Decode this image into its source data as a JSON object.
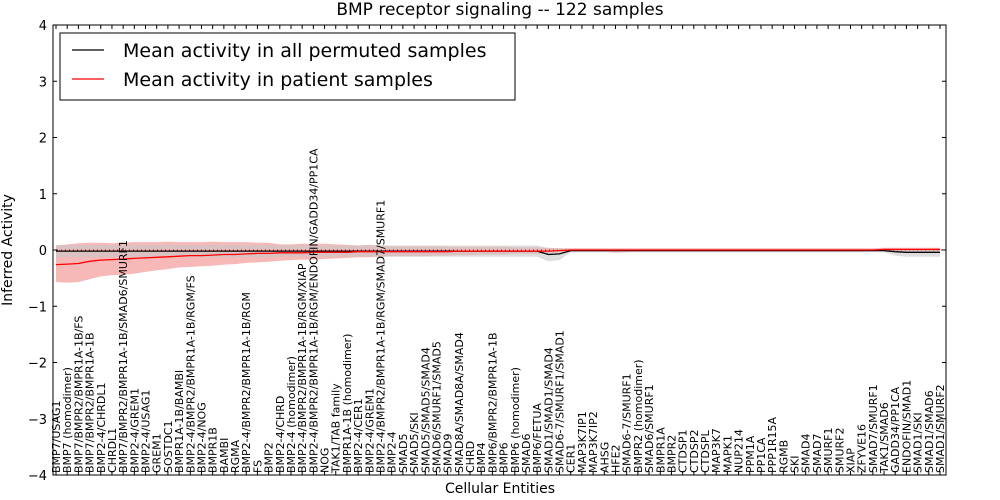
{
  "chart_data": {
    "type": "line",
    "title": "BMP receptor signaling -- 122 samples",
    "xlabel": "Cellular Entities",
    "ylabel": "Inferred Activity",
    "ylim": [
      -4,
      4
    ],
    "yticks": [
      -4,
      -3,
      -2,
      -1,
      0,
      1,
      2,
      3,
      4
    ],
    "legend_position": "top-left",
    "colors": {
      "permuted": "#000000",
      "patient": "#ff0000",
      "patient_band": "#f4a0a0",
      "permuted_band": "#c8c8c8",
      "zero_line": "#ff0000"
    },
    "categories": [
      "BMP7/USAG1",
      "BMP7 (homodimer)",
      "BMP7/BMPR2/BMPR1A-1B/FS",
      "BMP7/BMPR2/BMPR1A-1B",
      "BMP2-4/CHRDL1",
      "CHRDL1",
      "BMP7/BMPR2/BMPR1A-1B/SMAD6/SMURF1",
      "BMP2-4/GREM1",
      "BMP2-4/USAG1",
      "GREM1",
      "SOSTDC1",
      "BMPR1A-1B/BAMBI",
      "BMP2-4/BMPR2/BMPR1A-1B/RGM/FS",
      "BMP2-4/NOG",
      "BMPR1B",
      "BAMBI",
      "RGMA",
      "BMP2-4/BMPR2/BMPR1A-1B/RGM",
      "FS",
      "BMP2",
      "BMP2-4/CHRD",
      "BMP2-4 (homodimer)",
      "BMP2-4/BMPR2/BMPR1A-1B/RGM/XIAP",
      "BMP2-4/BMPR2/BMPR1A-1B/RGM/ENDOFIN/GADD34/PP1CA",
      "NOG",
      "TAK1/TAB family",
      "BMPR1A-1B (homodimer)",
      "BMP2-4/CER1",
      "BMP2-4/GREM1",
      "BMP2-4/BMPR2/BMPR1A-1B/RGM/SMAD7/SMURF1",
      "BMP2-4",
      "SMAD5",
      "SMAD5/SKI",
      "SMAD5/SMAD5/SMAD4",
      "SMAD6/SMURF1/SMAD5",
      "SMAD9",
      "SMAD8A/SMAD8A/SMAD4",
      "CHRD",
      "BMP4",
      "BMP6/BMPR2/BMPR1A-1B",
      "BMP6",
      "BMP6 (homodimer)",
      "SMAD6",
      "BMP6/FETUA",
      "SMAD1/SMAD1/SMAD4",
      "SMAD6-7/SMURF1/SMAD1",
      "CER1",
      "MAP3K7IP1",
      "MAP3K7IP2",
      "AHSG",
      "HFE2",
      "SMAD6-7/SMURF1",
      "BMPR2 (homodimer)",
      "SMAD6/SMURF1",
      "BMPR1A",
      "BMPR2",
      "CTDSP1",
      "CTDSP2",
      "CTDSPL",
      "MAP3K7",
      "MAPK1",
      "NUP214",
      "PPM1A",
      "PP1CA",
      "PPP1R15A",
      "RGMB",
      "SKI",
      "SMAD4",
      "SMAD7",
      "SMURF1",
      "SMURF2",
      "XIAP",
      "ZFYVE16",
      "SMAD7/SMURF1",
      "TAK1/SMAD6",
      "GADD34/PP1CA",
      "ENDOFIN/SMAD1",
      "SMAD1/SKI",
      "SMAD1/SMAD6",
      "SMAD1/SMURF2"
    ],
    "series": [
      {
        "name": "Mean activity in all permuted samples",
        "color": "#000000",
        "values": [
          -0.02,
          -0.02,
          -0.02,
          -0.02,
          -0.02,
          -0.02,
          -0.02,
          -0.02,
          -0.02,
          -0.02,
          -0.02,
          -0.02,
          -0.02,
          -0.02,
          -0.02,
          -0.02,
          -0.02,
          -0.02,
          -0.02,
          -0.02,
          -0.02,
          -0.02,
          -0.02,
          -0.02,
          -0.02,
          -0.02,
          -0.02,
          -0.02,
          -0.02,
          -0.02,
          -0.02,
          -0.02,
          -0.02,
          -0.02,
          -0.02,
          -0.02,
          -0.02,
          -0.02,
          -0.02,
          -0.02,
          -0.02,
          -0.02,
          -0.02,
          -0.02,
          -0.08,
          -0.07,
          -0.01,
          -0.01,
          -0.01,
          -0.01,
          -0.01,
          -0.01,
          -0.01,
          -0.01,
          -0.01,
          -0.01,
          -0.01,
          -0.01,
          -0.01,
          -0.01,
          -0.01,
          -0.01,
          -0.01,
          -0.01,
          -0.01,
          -0.01,
          -0.01,
          -0.01,
          -0.01,
          -0.01,
          -0.01,
          -0.01,
          -0.01,
          -0.01,
          -0.01,
          -0.03,
          -0.04,
          -0.04,
          -0.04,
          -0.04
        ],
        "upper": [
          0.09,
          0.09,
          0.09,
          0.09,
          0.09,
          0.09,
          0.09,
          0.09,
          0.09,
          0.09,
          0.09,
          0.09,
          0.09,
          0.09,
          0.09,
          0.09,
          0.09,
          0.09,
          0.09,
          0.09,
          0.08,
          0.08,
          0.08,
          0.08,
          0.08,
          0.08,
          0.08,
          0.08,
          0.08,
          0.08,
          0.08,
          0.08,
          0.08,
          0.08,
          0.08,
          0.08,
          0.08,
          0.08,
          0.08,
          0.08,
          0.08,
          0.08,
          0.08,
          0.08,
          0.03,
          0.03,
          0.02,
          0.02,
          0.02,
          0.02,
          0.02,
          0.02,
          0.02,
          0.02,
          0.02,
          0.02,
          0.02,
          0.02,
          0.02,
          0.02,
          0.02,
          0.02,
          0.02,
          0.02,
          0.02,
          0.02,
          0.02,
          0.02,
          0.02,
          0.02,
          0.02,
          0.02,
          0.02,
          0.02,
          0.02,
          0.02,
          0.02,
          0.02,
          0.02,
          0.02
        ],
        "lower": [
          -0.13,
          -0.13,
          -0.13,
          -0.13,
          -0.13,
          -0.13,
          -0.13,
          -0.13,
          -0.13,
          -0.13,
          -0.13,
          -0.13,
          -0.13,
          -0.13,
          -0.13,
          -0.13,
          -0.13,
          -0.13,
          -0.13,
          -0.13,
          -0.12,
          -0.12,
          -0.12,
          -0.12,
          -0.12,
          -0.12,
          -0.12,
          -0.12,
          -0.12,
          -0.12,
          -0.12,
          -0.12,
          -0.12,
          -0.12,
          -0.12,
          -0.12,
          -0.12,
          -0.12,
          -0.12,
          -0.12,
          -0.12,
          -0.12,
          -0.12,
          -0.12,
          -0.2,
          -0.18,
          -0.04,
          -0.04,
          -0.04,
          -0.04,
          -0.04,
          -0.04,
          -0.04,
          -0.04,
          -0.04,
          -0.04,
          -0.04,
          -0.04,
          -0.04,
          -0.04,
          -0.04,
          -0.04,
          -0.04,
          -0.04,
          -0.04,
          -0.04,
          -0.04,
          -0.04,
          -0.04,
          -0.04,
          -0.04,
          -0.04,
          -0.04,
          -0.04,
          -0.04,
          -0.1,
          -0.12,
          -0.12,
          -0.12,
          -0.12
        ]
      },
      {
        "name": "Mean activity in patient samples",
        "color": "#ff0000",
        "values": [
          -0.26,
          -0.25,
          -0.24,
          -0.2,
          -0.18,
          -0.17,
          -0.16,
          -0.15,
          -0.14,
          -0.13,
          -0.12,
          -0.11,
          -0.1,
          -0.1,
          -0.09,
          -0.08,
          -0.08,
          -0.07,
          -0.06,
          -0.06,
          -0.05,
          -0.05,
          -0.05,
          -0.04,
          -0.04,
          -0.04,
          -0.04,
          -0.03,
          -0.03,
          -0.03,
          -0.03,
          -0.03,
          -0.03,
          -0.03,
          -0.03,
          -0.03,
          -0.02,
          -0.02,
          -0.02,
          -0.02,
          -0.02,
          -0.02,
          -0.02,
          -0.02,
          -0.02,
          -0.01,
          0.0,
          0.0,
          0.0,
          0.0,
          0.0,
          0.0,
          0.0,
          0.0,
          0.0,
          0.0,
          0.0,
          0.0,
          0.0,
          0.0,
          0.0,
          0.0,
          0.0,
          0.0,
          0.0,
          0.0,
          0.0,
          0.0,
          0.0,
          0.0,
          0.0,
          0.0,
          0.0,
          0.0,
          0.01,
          0.01,
          0.01,
          0.01,
          0.01,
          0.01
        ],
        "upper": [
          0.08,
          0.1,
          0.12,
          0.13,
          0.13,
          0.12,
          0.13,
          0.14,
          0.14,
          0.14,
          0.15,
          0.14,
          0.14,
          0.14,
          0.15,
          0.14,
          0.14,
          0.14,
          0.13,
          0.13,
          0.1,
          0.1,
          0.11,
          0.11,
          0.11,
          0.1,
          0.09,
          0.08,
          0.09,
          0.08,
          0.07,
          0.07,
          0.07,
          0.07,
          0.07,
          0.06,
          0.06,
          0.06,
          0.06,
          0.06,
          0.06,
          0.05,
          0.05,
          0.05,
          0.04,
          0.03,
          0.03,
          0.03,
          0.03,
          0.03,
          0.03,
          0.03,
          0.03,
          0.03,
          0.03,
          0.03,
          0.03,
          0.03,
          0.03,
          0.03,
          0.03,
          0.03,
          0.03,
          0.03,
          0.03,
          0.03,
          0.03,
          0.03,
          0.03,
          0.03,
          0.03,
          0.03,
          0.03,
          0.03,
          0.04,
          0.04,
          0.04,
          0.04,
          0.04,
          0.04
        ],
        "lower": [
          -0.57,
          -0.58,
          -0.57,
          -0.52,
          -0.47,
          -0.45,
          -0.44,
          -0.42,
          -0.39,
          -0.36,
          -0.34,
          -0.31,
          -0.3,
          -0.29,
          -0.28,
          -0.26,
          -0.25,
          -0.23,
          -0.22,
          -0.21,
          -0.19,
          -0.18,
          -0.17,
          -0.17,
          -0.16,
          -0.15,
          -0.14,
          -0.13,
          -0.13,
          -0.12,
          -0.11,
          -0.11,
          -0.11,
          -0.11,
          -0.1,
          -0.1,
          -0.09,
          -0.09,
          -0.08,
          -0.08,
          -0.08,
          -0.07,
          -0.07,
          -0.07,
          -0.06,
          -0.04,
          -0.03,
          -0.03,
          -0.03,
          -0.03,
          -0.05,
          -0.04,
          -0.03,
          -0.03,
          -0.03,
          -0.03,
          -0.03,
          -0.03,
          -0.03,
          -0.03,
          -0.03,
          -0.03,
          -0.03,
          -0.03,
          -0.03,
          -0.03,
          -0.03,
          -0.03,
          -0.03,
          -0.03,
          -0.03,
          -0.03,
          -0.03,
          -0.02,
          -0.02,
          -0.02,
          -0.02,
          -0.02,
          -0.02,
          -0.02
        ]
      }
    ]
  }
}
